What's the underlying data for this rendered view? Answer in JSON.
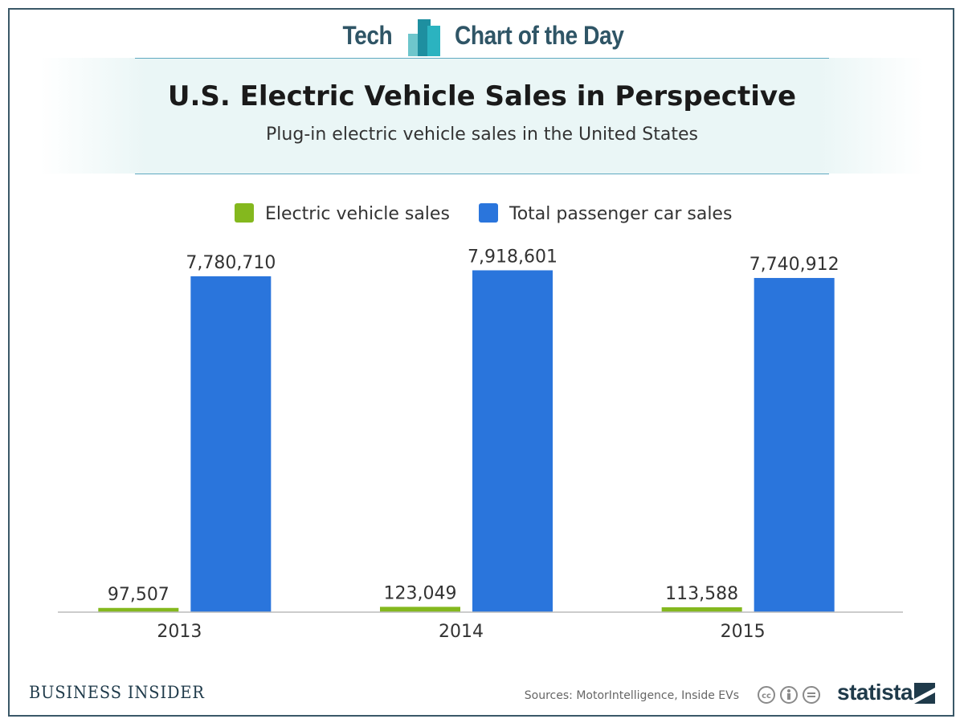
{
  "header": {
    "brand_left": "Tech",
    "brand_right": "Chart of the Day"
  },
  "chart_data": {
    "type": "bar",
    "title": "U.S. Electric Vehicle Sales in Perspective",
    "subtitle": "Plug-in electric vehicle sales in the United States",
    "categories": [
      "2013",
      "2014",
      "2015"
    ],
    "series": [
      {
        "name": "Electric vehicle sales",
        "color": "#84b81e",
        "values": [
          97507,
          123049,
          113588
        ],
        "labels": [
          "97,507",
          "123,049",
          "113,588"
        ]
      },
      {
        "name": "Total passenger car sales",
        "color": "#2a75dc",
        "values": [
          7780710,
          7918601,
          7740912
        ],
        "labels": [
          "7,780,710",
          "7,918,601",
          "7,740,912"
        ]
      }
    ],
    "ylim": [
      0,
      8000000
    ],
    "legend_position": "top-center",
    "grid": false
  },
  "footer": {
    "publisher": "BUSINESS INSIDER",
    "source": "Sources: MotorIntelligence, Inside EVs",
    "brand": "statista",
    "license_icons": [
      "cc-icon",
      "by-icon",
      "nd-icon"
    ]
  }
}
